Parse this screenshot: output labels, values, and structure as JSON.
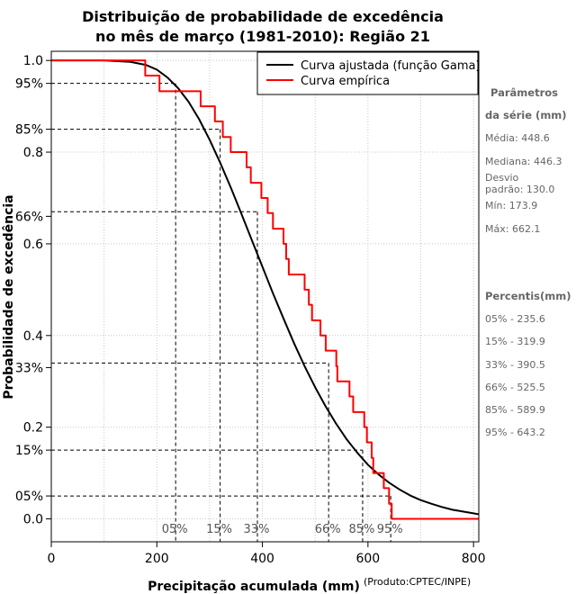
{
  "chart_data": {
    "type": "line",
    "title_lines": [
      "Distribuição de probabilidade de excedência",
      "no mês de março (1981-2010): Região 21"
    ],
    "xlabel": "Precipitação acumulada (mm)",
    "ylabel": "Probabilidade de excedência",
    "credit": "(Produto:CPTEC/INPE)",
    "xlim": [
      0,
      810
    ],
    "ylim": [
      -0.05,
      1.02
    ],
    "x_ticks": [
      0,
      200,
      400,
      600,
      800
    ],
    "x_tick_labels": [
      "0",
      "200",
      "400",
      "600",
      "800"
    ],
    "y_ticks": [
      0.0,
      0.2,
      0.4,
      0.6,
      0.8,
      1.0
    ],
    "y_tick_labels": [
      "0.0",
      "0.2",
      "0.4",
      "0.6",
      "0.8",
      "1.0"
    ],
    "y_pct_ticks": [
      0.05,
      0.15,
      0.33,
      0.66,
      0.85,
      0.95
    ],
    "y_pct_labels": [
      "05%",
      "15%",
      "33%",
      "66%",
      "85%",
      "95%"
    ],
    "grid": true,
    "legend_position": "top-right",
    "series": [
      {
        "name": "Curva ajustada (função Gama)",
        "color": "#000000",
        "x": [
          0,
          50,
          100,
          150,
          180,
          200,
          220,
          240,
          260,
          280,
          300,
          320,
          340,
          360,
          380,
          400,
          420,
          440,
          460,
          480,
          500,
          520,
          540,
          560,
          580,
          600,
          620,
          640,
          660,
          680,
          700,
          720,
          740,
          760,
          780,
          800,
          810
        ],
        "y": [
          1.0,
          1.0,
          1.0,
          0.997,
          0.99,
          0.98,
          0.963,
          0.94,
          0.91,
          0.872,
          0.827,
          0.777,
          0.723,
          0.666,
          0.608,
          0.55,
          0.492,
          0.437,
          0.383,
          0.333,
          0.287,
          0.245,
          0.207,
          0.173,
          0.144,
          0.118,
          0.097,
          0.079,
          0.064,
          0.051,
          0.041,
          0.033,
          0.026,
          0.02,
          0.016,
          0.012,
          0.01
        ]
      },
      {
        "name": "Curva empírica",
        "color": "#ff0000",
        "x": [
          0,
          173.9,
          178,
          185,
          205,
          270,
          283,
          310,
          325,
          340,
          370,
          378,
          398,
          410,
          420,
          440,
          445,
          450,
          480,
          488,
          494,
          510,
          520,
          540,
          542,
          565,
          572,
          593,
          598,
          607,
          610,
          630,
          640,
          645,
          660,
          662.1,
          810
        ],
        "y": [
          1.0,
          1.0,
          0.967,
          0.967,
          0.933,
          0.933,
          0.9,
          0.867,
          0.833,
          0.8,
          0.767,
          0.733,
          0.7,
          0.667,
          0.633,
          0.6,
          0.567,
          0.533,
          0.5,
          0.467,
          0.433,
          0.4,
          0.367,
          0.333,
          0.3,
          0.267,
          0.233,
          0.2,
          0.167,
          0.133,
          0.1,
          0.067,
          0.033,
          0.0,
          0.0,
          0.0,
          0.0
        ]
      }
    ],
    "percentile_markers": [
      {
        "label": "05%",
        "x": 235.6,
        "y": 0.95
      },
      {
        "label": "15%",
        "x": 319.9,
        "y": 0.85
      },
      {
        "label": "33%",
        "x": 390.5,
        "y": 0.66
      },
      {
        "label": "66%",
        "x": 525.5,
        "y": 0.33
      },
      {
        "label": "85%",
        "x": 589.9,
        "y": 0.15
      },
      {
        "label": "95%",
        "x": 643.2,
        "y": 0.05
      }
    ]
  },
  "side_panel": {
    "params_header_1": "Parâmetros",
    "params_header_2": "da série (mm)",
    "media": "Média: 448.6",
    "mediana": "Mediana: 446.3",
    "desvio_1": "Desvio",
    "desvio_2": "padrão: 130.0",
    "min": "Mín: 173.9",
    "max": "Máx: 662.1",
    "percentis_header": "Percentis(mm)",
    "percentis": [
      "05% - 235.6",
      "15% - 319.9",
      "33% - 390.5",
      "66% - 525.5",
      "85% - 589.9",
      "95% - 643.2"
    ]
  }
}
